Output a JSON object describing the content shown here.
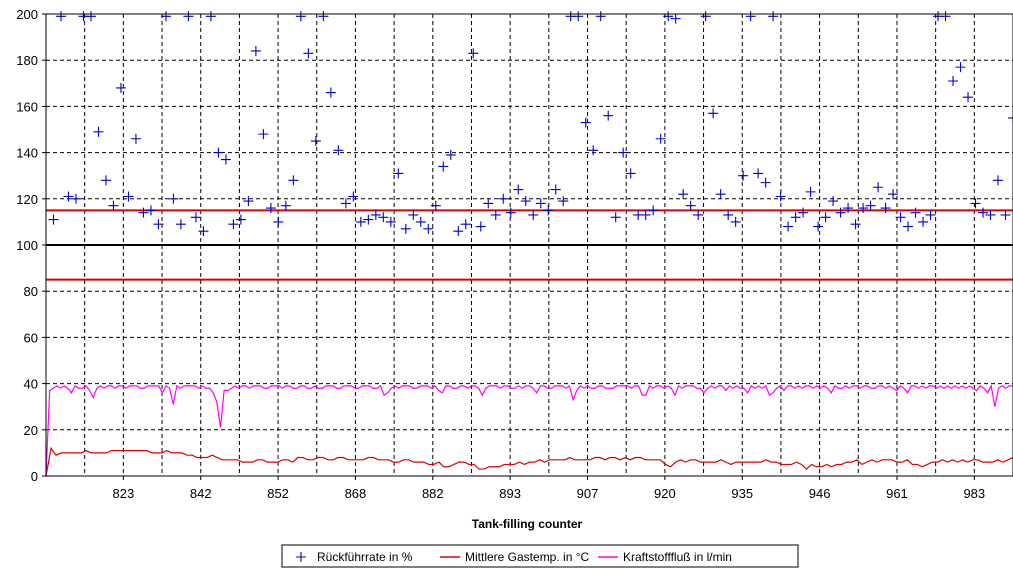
{
  "chart_data": {
    "type": "line",
    "xlabel": "Tank-filling counter",
    "ylabel": "",
    "ylim": [
      0,
      200
    ],
    "yticks": [
      0,
      20,
      40,
      60,
      80,
      100,
      120,
      140,
      160,
      180,
      200
    ],
    "xticks": [
      "823",
      "842",
      "852",
      "868",
      "882",
      "893",
      "907",
      "920",
      "935",
      "946",
      "961",
      "983"
    ],
    "grid": true,
    "legend_position": "bottom",
    "reference_lines": [
      {
        "y": 115,
        "color": "#dd0000"
      },
      {
        "y": 100,
        "color": "#000000"
      },
      {
        "y": 85,
        "color": "#dd0000"
      }
    ],
    "series": [
      {
        "name": "Rückführrate in %",
        "kind": "scatter",
        "marker": "plus",
        "color": "#0000cc",
        "values": [
          null,
          111,
          199,
          121,
          120,
          199,
          199,
          149,
          128,
          117,
          168,
          121,
          146,
          114,
          115,
          109,
          199,
          120,
          109,
          199,
          112,
          106,
          199,
          140,
          137,
          109,
          111,
          119,
          184,
          148,
          116,
          110,
          117,
          128,
          199,
          183,
          145,
          199,
          166,
          141,
          118,
          121,
          110,
          111,
          113,
          112,
          110,
          131,
          107,
          113,
          110,
          107,
          117,
          134,
          139,
          106,
          109,
          183,
          108,
          118,
          113,
          120,
          114,
          124,
          119,
          113,
          118,
          115,
          124,
          119,
          199,
          199,
          153,
          141,
          199,
          156,
          112,
          140,
          131,
          113,
          113,
          115,
          146,
          199,
          198,
          122,
          117,
          113,
          199,
          157,
          122,
          113,
          110,
          130,
          199,
          131,
          127,
          199,
          121,
          108,
          112,
          114,
          123,
          108,
          112,
          119,
          114,
          116,
          109,
          116,
          117,
          125,
          116,
          122,
          112,
          108,
          114,
          110,
          113,
          199,
          199,
          171,
          177,
          164,
          118,
          114,
          113,
          128,
          113,
          155
        ]
      },
      {
        "name": "Mittlere Gastemp. in °C",
        "kind": "line",
        "color": "#dd0000",
        "values": [
          0,
          12,
          9,
          10,
          10,
          10,
          10,
          10,
          11,
          10,
          10,
          10,
          10,
          11,
          11,
          11,
          11,
          11,
          11,
          11,
          11,
          10,
          10,
          10,
          11,
          10,
          10,
          10,
          9,
          9,
          8,
          8,
          8,
          9,
          8,
          7,
          7,
          7,
          7,
          6,
          6,
          6,
          7,
          7,
          6,
          6,
          6,
          7,
          7,
          6,
          8,
          8,
          7,
          7,
          8,
          8,
          7,
          7,
          8,
          8,
          7,
          7,
          7,
          7,
          8,
          8,
          7,
          7,
          7,
          6,
          6,
          7,
          7,
          6,
          6,
          6,
          5,
          5,
          6,
          4,
          4,
          5,
          6,
          6,
          5,
          5,
          3,
          3,
          4,
          4,
          4,
          5,
          5,
          5,
          6,
          5,
          6,
          6,
          7,
          6,
          7,
          7,
          7,
          7,
          8,
          7,
          7,
          7,
          7,
          8,
          8,
          7,
          8,
          8,
          7,
          8,
          7,
          8,
          8,
          7,
          7,
          7,
          7,
          5,
          4,
          6,
          7,
          6,
          7,
          7,
          6,
          6,
          6,
          6,
          7,
          6,
          5,
          6,
          6,
          6,
          6,
          6,
          6,
          7,
          6,
          6,
          5,
          5,
          5,
          6,
          5,
          3,
          5,
          4,
          4,
          5,
          4,
          5,
          5,
          6,
          6,
          7,
          5,
          6,
          7,
          6,
          7,
          7,
          7,
          6,
          6,
          7,
          5,
          5,
          4,
          5,
          6,
          6,
          7,
          6,
          7,
          6,
          7,
          6,
          7,
          7,
          6,
          6,
          6,
          7,
          6,
          7,
          8
        ]
      },
      {
        "name": "Kraftstofffluß in l/min",
        "kind": "line",
        "color": "#ff00ff",
        "values": [
          0,
          37,
          38,
          39,
          38,
          39,
          38,
          36,
          39,
          38,
          38,
          39,
          37,
          34,
          38,
          39,
          38,
          39,
          39,
          38,
          39,
          39,
          38,
          39,
          39,
          39,
          38,
          38,
          39,
          39,
          39,
          39,
          36,
          39,
          38,
          31,
          39,
          38,
          39,
          39,
          39,
          39,
          38,
          39,
          38,
          38,
          36,
          32,
          21,
          37,
          37,
          38,
          39,
          38,
          39,
          39,
          38,
          39,
          39,
          39,
          38,
          38,
          39,
          39,
          39,
          38,
          39,
          39,
          38,
          38,
          39,
          39,
          38,
          38,
          39,
          38,
          38,
          39,
          39,
          39,
          38,
          38,
          39,
          39,
          39,
          38,
          38,
          39,
          39,
          39,
          38,
          38,
          39,
          35,
          36,
          38,
          39,
          38,
          39,
          39,
          39,
          38,
          38,
          39,
          39,
          39,
          38,
          39,
          37,
          36,
          39,
          39,
          38,
          38,
          39,
          39,
          38,
          39,
          39,
          38,
          35,
          38,
          39,
          39,
          39,
          38,
          39,
          39,
          38,
          38,
          39,
          38,
          39,
          39,
          38,
          36,
          39,
          39,
          38,
          38,
          39,
          39,
          39,
          38,
          39,
          33,
          37,
          39,
          38,
          39,
          38,
          38,
          39,
          39,
          38,
          38,
          38,
          39,
          39,
          39,
          39,
          38,
          39,
          39,
          35,
          35,
          39,
          38,
          39,
          39,
          38,
          39,
          38,
          35,
          39,
          38,
          39,
          39,
          39,
          38,
          38,
          36,
          38,
          39,
          38,
          39,
          39,
          37,
          39,
          38,
          39,
          38,
          38,
          36,
          39,
          38,
          39,
          38,
          39,
          35,
          36,
          38,
          39,
          37,
          39,
          39,
          38,
          39,
          38,
          39,
          39,
          38,
          39,
          38,
          39,
          38,
          36,
          39,
          38,
          38,
          39,
          38,
          39,
          39,
          38,
          39,
          39,
          38,
          38,
          39,
          39,
          38,
          39,
          38,
          37,
          39,
          38,
          36,
          39,
          39,
          38,
          39,
          38,
          39,
          39,
          38,
          39,
          38,
          39,
          38,
          39,
          38,
          39,
          38,
          39,
          38,
          37,
          39,
          38,
          36,
          39,
          30,
          38,
          39,
          38,
          39,
          39
        ]
      }
    ]
  }
}
